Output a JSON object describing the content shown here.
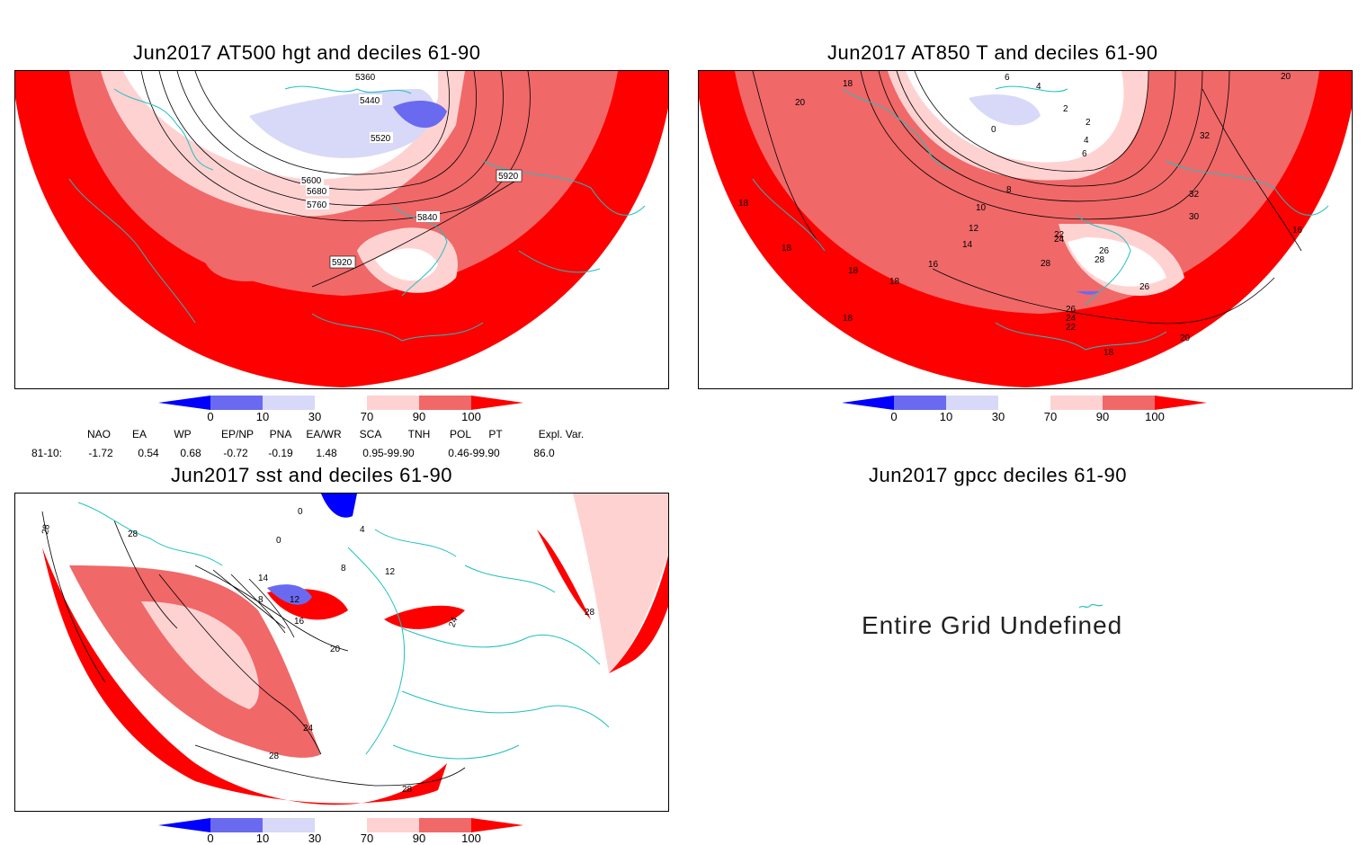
{
  "panels": {
    "hgt": {
      "title": "Jun2017 AT500 hgt and deciles 61-90",
      "contour_labels": [
        "5360",
        "5440",
        "5520",
        "5600",
        "5680",
        "5760",
        "5840",
        "5920",
        "5920"
      ]
    },
    "t850": {
      "title": "Jun2017 AT850 T and deciles 61-90",
      "contour_labels": [
        "18",
        "20",
        "6",
        "4",
        "2",
        "0",
        "2",
        "4",
        "6",
        "8",
        "10",
        "12",
        "14",
        "16",
        "18",
        "18",
        "18",
        "18",
        "18",
        "20",
        "20",
        "22",
        "24",
        "26",
        "26",
        "28",
        "28",
        "30",
        "32",
        "32",
        "26",
        "24",
        "22",
        "18",
        "16"
      ]
    },
    "sst": {
      "title": "Jun2017 sst and deciles 61-90",
      "contour_labels": [
        "28",
        "28",
        "0",
        "0",
        "4",
        "8",
        "12",
        "14",
        "8",
        "12",
        "16",
        "20",
        "24",
        "28",
        "28",
        "24",
        "28"
      ]
    },
    "gpcc": {
      "title": "Jun2017 gpcc deciles 61-90",
      "message": "Entire Grid Undefined"
    }
  },
  "colorbar": {
    "labels": [
      "0",
      "10",
      "30",
      "70",
      "90",
      "100"
    ],
    "colors": [
      "#0000ff",
      "#6a6af0",
      "#d8d8f8",
      "#ffffff",
      "#ffd2d2",
      "#f06868",
      "#ff0000"
    ]
  },
  "indices": {
    "headers": [
      "NAO",
      "EA",
      "WP",
      "EP/NP",
      "PNA",
      "EA/WR",
      "SCA",
      "TNH",
      "POL",
      "PT",
      "Expl. Var."
    ],
    "row_label": "81-10:",
    "values": [
      "-1.72",
      "0.54",
      "0.68",
      "-0.72",
      "-0.19",
      "1.48",
      "0.95-99.90",
      "0.46-99.90",
      "86.0"
    ]
  }
}
